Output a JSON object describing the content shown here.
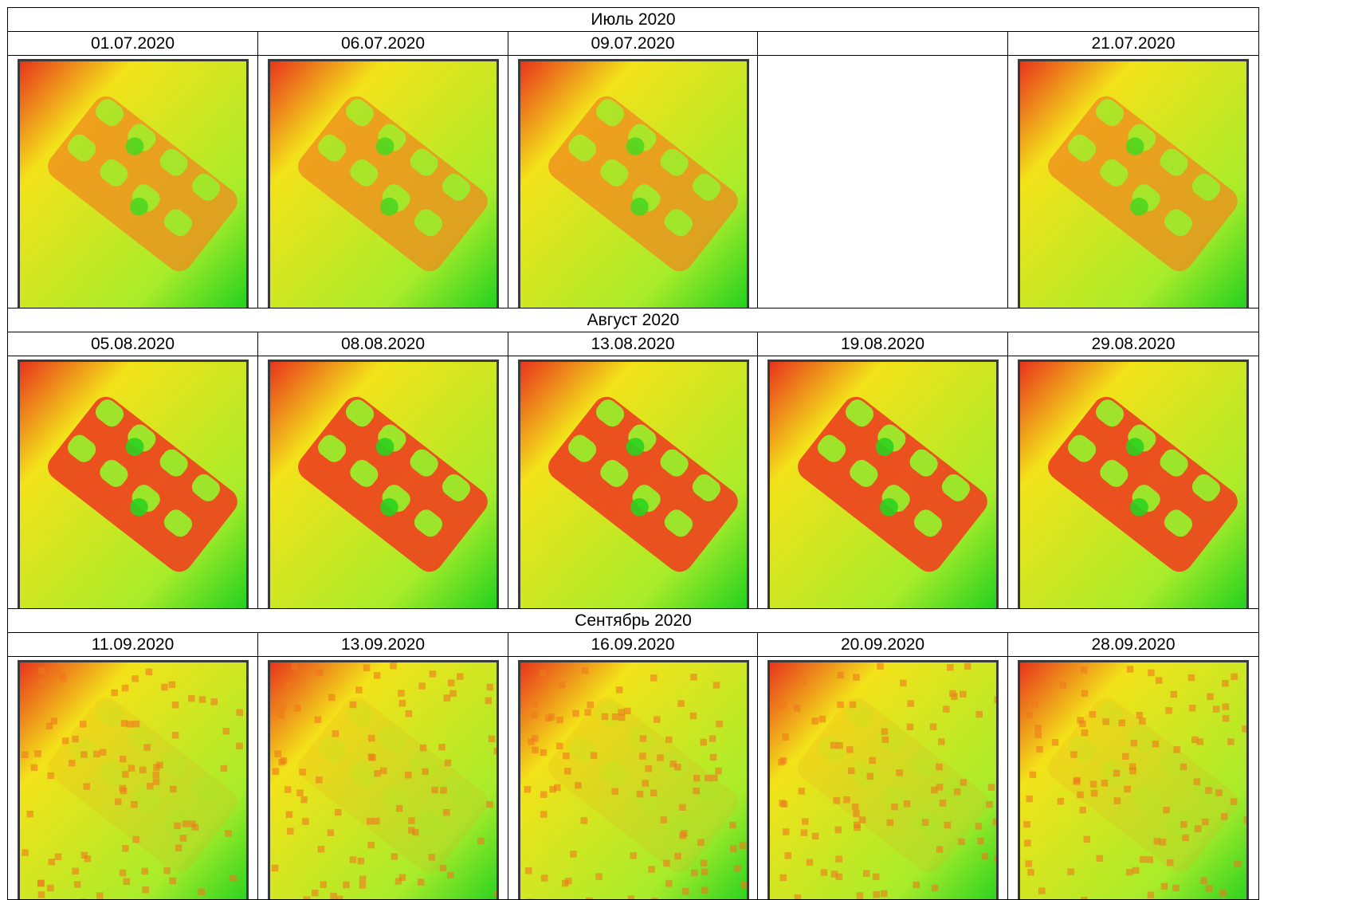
{
  "table": {
    "months": [
      {
        "title": "Июль 2020",
        "dates": [
          "01.07.2020",
          "06.07.2020",
          "09.07.2020",
          "",
          "21.07.2020"
        ],
        "images": [
          "ndvi-map",
          "ndvi-map",
          "ndvi-map",
          "",
          "ndvi-map"
        ]
      },
      {
        "title": "Август 2020",
        "dates": [
          "05.08.2020",
          "08.08.2020",
          "13.08.2020",
          "19.08.2020",
          "29.08.2020"
        ],
        "images": [
          "ndvi-map",
          "ndvi-map",
          "ndvi-map",
          "ndvi-map",
          "ndvi-map"
        ]
      },
      {
        "title": "Сентябрь 2020",
        "dates": [
          "11.09.2020",
          "13.09.2020",
          "16.09.2020",
          "20.09.2020",
          "28.09.2020"
        ],
        "images": [
          "ndvi-map",
          "ndvi-map",
          "ndvi-map",
          "ndvi-map",
          "ndvi-map"
        ]
      }
    ]
  },
  "colors": {
    "low": "#e8341c",
    "mid": "#f3e21a",
    "high": "#22d11f"
  }
}
